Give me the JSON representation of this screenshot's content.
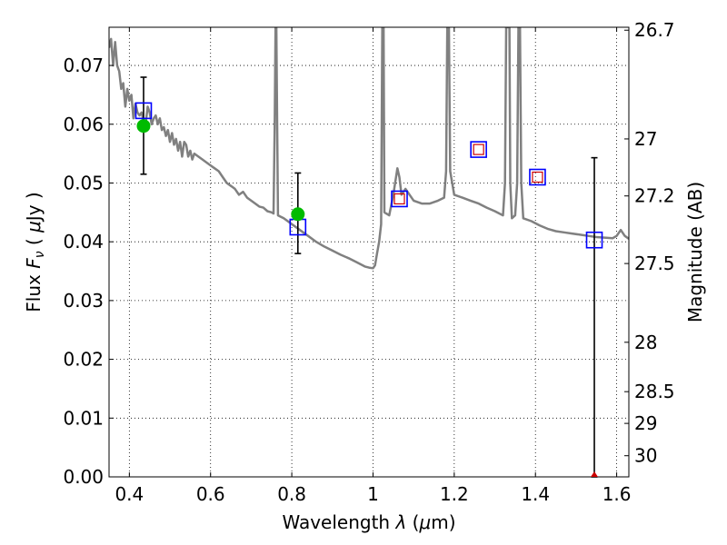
{
  "chart_data": {
    "type": "line",
    "xlabel": "Wavelength  λ (μm)",
    "ylabel": "Flux  Fν  ( μJy )",
    "y2label": "Magnitude (AB)",
    "xlim": [
      0.35,
      1.63
    ],
    "ylim": [
      0.0,
      0.0765
    ],
    "grid": true,
    "x_ticks": [
      0.4,
      0.6,
      0.8,
      1.0,
      1.2,
      1.4,
      1.6
    ],
    "x_tick_labels": [
      "0.4",
      "0.6",
      "0.8",
      "1",
      "1.2",
      "1.4",
      "1.6"
    ],
    "y_ticks": [
      0.0,
      0.01,
      0.02,
      0.03,
      0.04,
      0.05,
      0.06,
      0.07
    ],
    "y_tick_labels": [
      "0.00",
      "0.01",
      "0.02",
      "0.03",
      "0.04",
      "0.05",
      "0.06",
      "0.07"
    ],
    "mag_ticks": [
      {
        "label": "26.7",
        "flux": 0.076
      },
      {
        "label": "27",
        "flux": 0.0575
      },
      {
        "label": "27.2",
        "flux": 0.0478
      },
      {
        "label": "27.5",
        "flux": 0.0363
      },
      {
        "label": "28",
        "flux": 0.0229
      },
      {
        "label": "28.5",
        "flux": 0.0145
      },
      {
        "label": "29",
        "flux": 0.0091
      },
      {
        "label": "30",
        "flux": 0.0036
      }
    ],
    "colors": {
      "sed": "#808080",
      "model_box": "#0000ff",
      "observed": "#00bb00",
      "error": "#000000",
      "inner_box": "#cc0000"
    },
    "series": [
      {
        "type": "line",
        "points": [
          [
            0.35,
            0.073
          ],
          [
            0.355,
            0.0745
          ],
          [
            0.36,
            0.07
          ],
          [
            0.365,
            0.074
          ],
          [
            0.37,
            0.07
          ],
          [
            0.375,
            0.069
          ],
          [
            0.38,
            0.066
          ],
          [
            0.385,
            0.067
          ],
          [
            0.39,
            0.063
          ],
          [
            0.395,
            0.066
          ],
          [
            0.4,
            0.064
          ],
          [
            0.405,
            0.065
          ],
          [
            0.41,
            0.061
          ],
          [
            0.415,
            0.0635
          ],
          [
            0.42,
            0.062
          ],
          [
            0.425,
            0.0615
          ],
          [
            0.43,
            0.062
          ],
          [
            0.435,
            0.0605
          ],
          [
            0.44,
            0.06
          ],
          [
            0.445,
            0.063
          ],
          [
            0.45,
            0.062
          ],
          [
            0.455,
            0.06
          ],
          [
            0.46,
            0.061
          ],
          [
            0.465,
            0.0615
          ],
          [
            0.47,
            0.06
          ],
          [
            0.475,
            0.061
          ],
          [
            0.48,
            0.059
          ],
          [
            0.485,
            0.0595
          ],
          [
            0.49,
            0.058
          ],
          [
            0.495,
            0.059
          ],
          [
            0.5,
            0.057
          ],
          [
            0.505,
            0.0585
          ],
          [
            0.51,
            0.0565
          ],
          [
            0.515,
            0.0575
          ],
          [
            0.52,
            0.0555
          ],
          [
            0.525,
            0.057
          ],
          [
            0.53,
            0.0545
          ],
          [
            0.535,
            0.057
          ],
          [
            0.54,
            0.0565
          ],
          [
            0.545,
            0.0545
          ],
          [
            0.55,
            0.0555
          ],
          [
            0.555,
            0.054
          ],
          [
            0.56,
            0.055
          ],
          [
            0.57,
            0.0545
          ],
          [
            0.58,
            0.054
          ],
          [
            0.6,
            0.053
          ],
          [
            0.61,
            0.0525
          ],
          [
            0.62,
            0.052
          ],
          [
            0.63,
            0.051
          ],
          [
            0.64,
            0.05
          ],
          [
            0.65,
            0.0495
          ],
          [
            0.66,
            0.049
          ],
          [
            0.67,
            0.048
          ],
          [
            0.68,
            0.0485
          ],
          [
            0.69,
            0.0475
          ],
          [
            0.7,
            0.047
          ],
          [
            0.71,
            0.0465
          ],
          [
            0.72,
            0.046
          ],
          [
            0.73,
            0.0458
          ],
          [
            0.74,
            0.0452
          ],
          [
            0.75,
            0.045
          ],
          [
            0.755,
            0.0448
          ],
          [
            0.758,
            0.06
          ],
          [
            0.76,
            0.0765
          ],
          [
            0.762,
            0.0765
          ],
          [
            0.764,
            0.06
          ],
          [
            0.766,
            0.0445
          ],
          [
            0.78,
            0.044
          ],
          [
            0.8,
            0.043
          ],
          [
            0.82,
            0.042
          ],
          [
            0.84,
            0.041
          ],
          [
            0.86,
            0.04
          ],
          [
            0.88,
            0.0392
          ],
          [
            0.9,
            0.0385
          ],
          [
            0.92,
            0.0378
          ],
          [
            0.94,
            0.0372
          ],
          [
            0.96,
            0.0365
          ],
          [
            0.98,
            0.0358
          ],
          [
            0.99,
            0.0356
          ],
          [
            1.0,
            0.0355
          ],
          [
            1.005,
            0.036
          ],
          [
            1.01,
            0.038
          ],
          [
            1.015,
            0.04
          ],
          [
            1.02,
            0.043
          ],
          [
            1.023,
            0.0765
          ],
          [
            1.026,
            0.0765
          ],
          [
            1.028,
            0.045
          ],
          [
            1.04,
            0.0445
          ],
          [
            1.05,
            0.048
          ],
          [
            1.06,
            0.0525
          ],
          [
            1.065,
            0.051
          ],
          [
            1.07,
            0.048
          ],
          [
            1.08,
            0.049
          ],
          [
            1.09,
            0.048
          ],
          [
            1.1,
            0.047
          ],
          [
            1.12,
            0.0465
          ],
          [
            1.14,
            0.0465
          ],
          [
            1.16,
            0.047
          ],
          [
            1.175,
            0.0475
          ],
          [
            1.18,
            0.052
          ],
          [
            1.183,
            0.0765
          ],
          [
            1.187,
            0.0765
          ],
          [
            1.19,
            0.052
          ],
          [
            1.2,
            0.048
          ],
          [
            1.22,
            0.0475
          ],
          [
            1.24,
            0.047
          ],
          [
            1.26,
            0.0465
          ],
          [
            1.28,
            0.0458
          ],
          [
            1.3,
            0.0452
          ],
          [
            1.32,
            0.0445
          ],
          [
            1.325,
            0.05
          ],
          [
            1.328,
            0.0765
          ],
          [
            1.336,
            0.0765
          ],
          [
            1.338,
            0.05
          ],
          [
            1.342,
            0.044
          ],
          [
            1.35,
            0.0445
          ],
          [
            1.355,
            0.05
          ],
          [
            1.358,
            0.0765
          ],
          [
            1.362,
            0.0765
          ],
          [
            1.365,
            0.05
          ],
          [
            1.37,
            0.044
          ],
          [
            1.39,
            0.0435
          ],
          [
            1.41,
            0.0428
          ],
          [
            1.43,
            0.0422
          ],
          [
            1.45,
            0.0418
          ],
          [
            1.47,
            0.0416
          ],
          [
            1.49,
            0.0414
          ],
          [
            1.51,
            0.0412
          ],
          [
            1.53,
            0.041
          ],
          [
            1.55,
            0.0408
          ],
          [
            1.57,
            0.0407
          ],
          [
            1.59,
            0.0406
          ],
          [
            1.6,
            0.041
          ],
          [
            1.61,
            0.042
          ],
          [
            1.62,
            0.041
          ],
          [
            1.63,
            0.0405
          ]
        ]
      },
      {
        "type": "model_squares",
        "points": [
          [
            0.435,
            0.0623
          ],
          [
            0.815,
            0.0425
          ],
          [
            1.065,
            0.0473
          ],
          [
            1.26,
            0.0557
          ],
          [
            1.405,
            0.051
          ],
          [
            1.545,
            0.0403
          ]
        ]
      },
      {
        "type": "inner_squares",
        "points": [
          [
            1.065,
            0.0473
          ],
          [
            1.26,
            0.0557
          ],
          [
            1.405,
            0.051
          ]
        ]
      },
      {
        "type": "observed",
        "points": [
          [
            0.435,
            0.0597
          ],
          [
            0.815,
            0.0447
          ]
        ]
      },
      {
        "type": "error_bars",
        "bars": [
          {
            "x": 0.435,
            "low": 0.0515,
            "high": 0.068
          },
          {
            "x": 0.815,
            "low": 0.038,
            "high": 0.0517
          },
          {
            "x": 1.545,
            "low": 0.0,
            "high": 0.0543
          }
        ]
      },
      {
        "type": "upper_limit_marker",
        "points": [
          [
            1.545,
            0.0
          ]
        ]
      }
    ]
  }
}
